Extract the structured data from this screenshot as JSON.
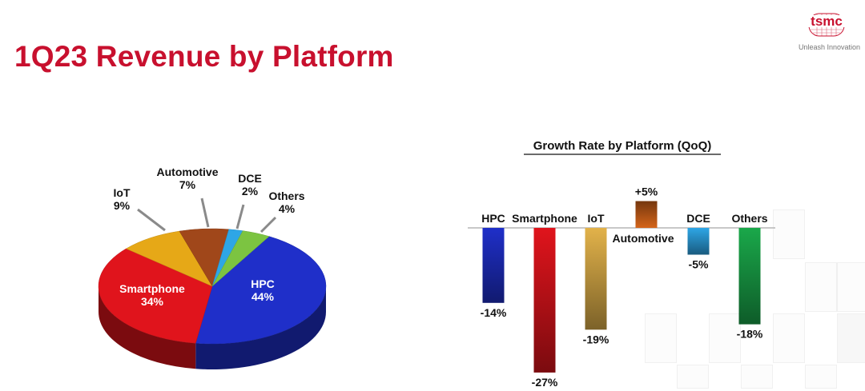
{
  "page": {
    "title": "1Q23 Revenue by Platform"
  },
  "brand": {
    "logo_text": "tsmc",
    "tagline": "Unleash Innovation"
  },
  "colors": {
    "title": "#c8102e",
    "hpc": "#1f2fc9",
    "smartphone": "#e0141c",
    "iot": "#e2b24a",
    "automotive": "#d4641a",
    "dce": "#2ea6e6",
    "others": "#1aa84a",
    "others_pie": "#7cc441",
    "iot_pie": "#e6a817",
    "automotive_pie": "#a0471a"
  },
  "chart_data": [
    {
      "type": "pie",
      "title": "",
      "slices": [
        {
          "name": "HPC",
          "value": 44,
          "label": "44%"
        },
        {
          "name": "Smartphone",
          "value": 34,
          "label": "34%"
        },
        {
          "name": "IoT",
          "value": 9,
          "label": "9%"
        },
        {
          "name": "Automotive",
          "value": 7,
          "label": "7%"
        },
        {
          "name": "DCE",
          "value": 2,
          "label": "2%"
        },
        {
          "name": "Others",
          "value": 4,
          "label": "4%"
        }
      ]
    },
    {
      "type": "bar",
      "title": "Growth Rate by Platform (QoQ)",
      "categories": [
        "HPC",
        "Smartphone",
        "IoT",
        "Automotive",
        "DCE",
        "Others"
      ],
      "values": [
        -14,
        -27,
        -19,
        5,
        -5,
        -18
      ],
      "value_labels": [
        "-14%",
        "-27%",
        "-19%",
        "+5%",
        "-5%",
        "-18%"
      ],
      "ylim": [
        -27,
        5
      ]
    }
  ]
}
